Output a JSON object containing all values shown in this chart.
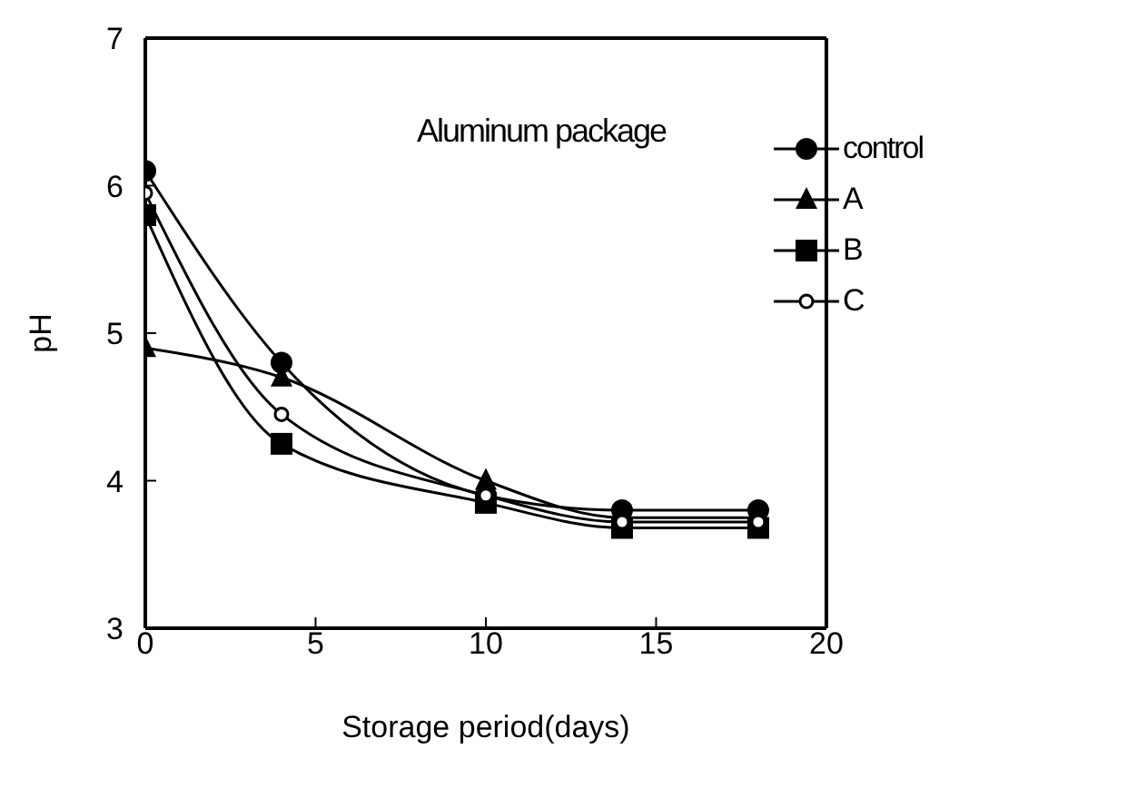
{
  "chart_data": {
    "type": "line",
    "title": "Aluminum package",
    "xlabel": "Storage period(days)",
    "ylabel": "pH",
    "x": [
      0,
      4,
      10,
      14,
      18
    ],
    "xlim": [
      0,
      20
    ],
    "xticks": [
      0,
      5,
      10,
      15,
      20
    ],
    "ylim": [
      3,
      7
    ],
    "yticks": [
      3,
      4,
      5,
      6,
      7
    ],
    "grid": false,
    "legend": "top right",
    "line_style": "solid",
    "series": [
      {
        "name": "control",
        "color": "#000000",
        "marker": "circle",
        "values": [
          6.1,
          4.8,
          3.9,
          3.8,
          3.8
        ]
      },
      {
        "name": "A",
        "color": "#000000",
        "marker": "triangle",
        "values": [
          4.9,
          4.7,
          4.0,
          3.75,
          3.75
        ]
      },
      {
        "name": "B",
        "color": "#000000",
        "marker": "square",
        "values": [
          5.8,
          4.25,
          3.85,
          3.68,
          3.68
        ]
      },
      {
        "name": "C",
        "color": "#000000",
        "marker": "hollow-circle",
        "values": [
          5.95,
          4.45,
          3.9,
          3.72,
          3.72
        ]
      }
    ]
  }
}
